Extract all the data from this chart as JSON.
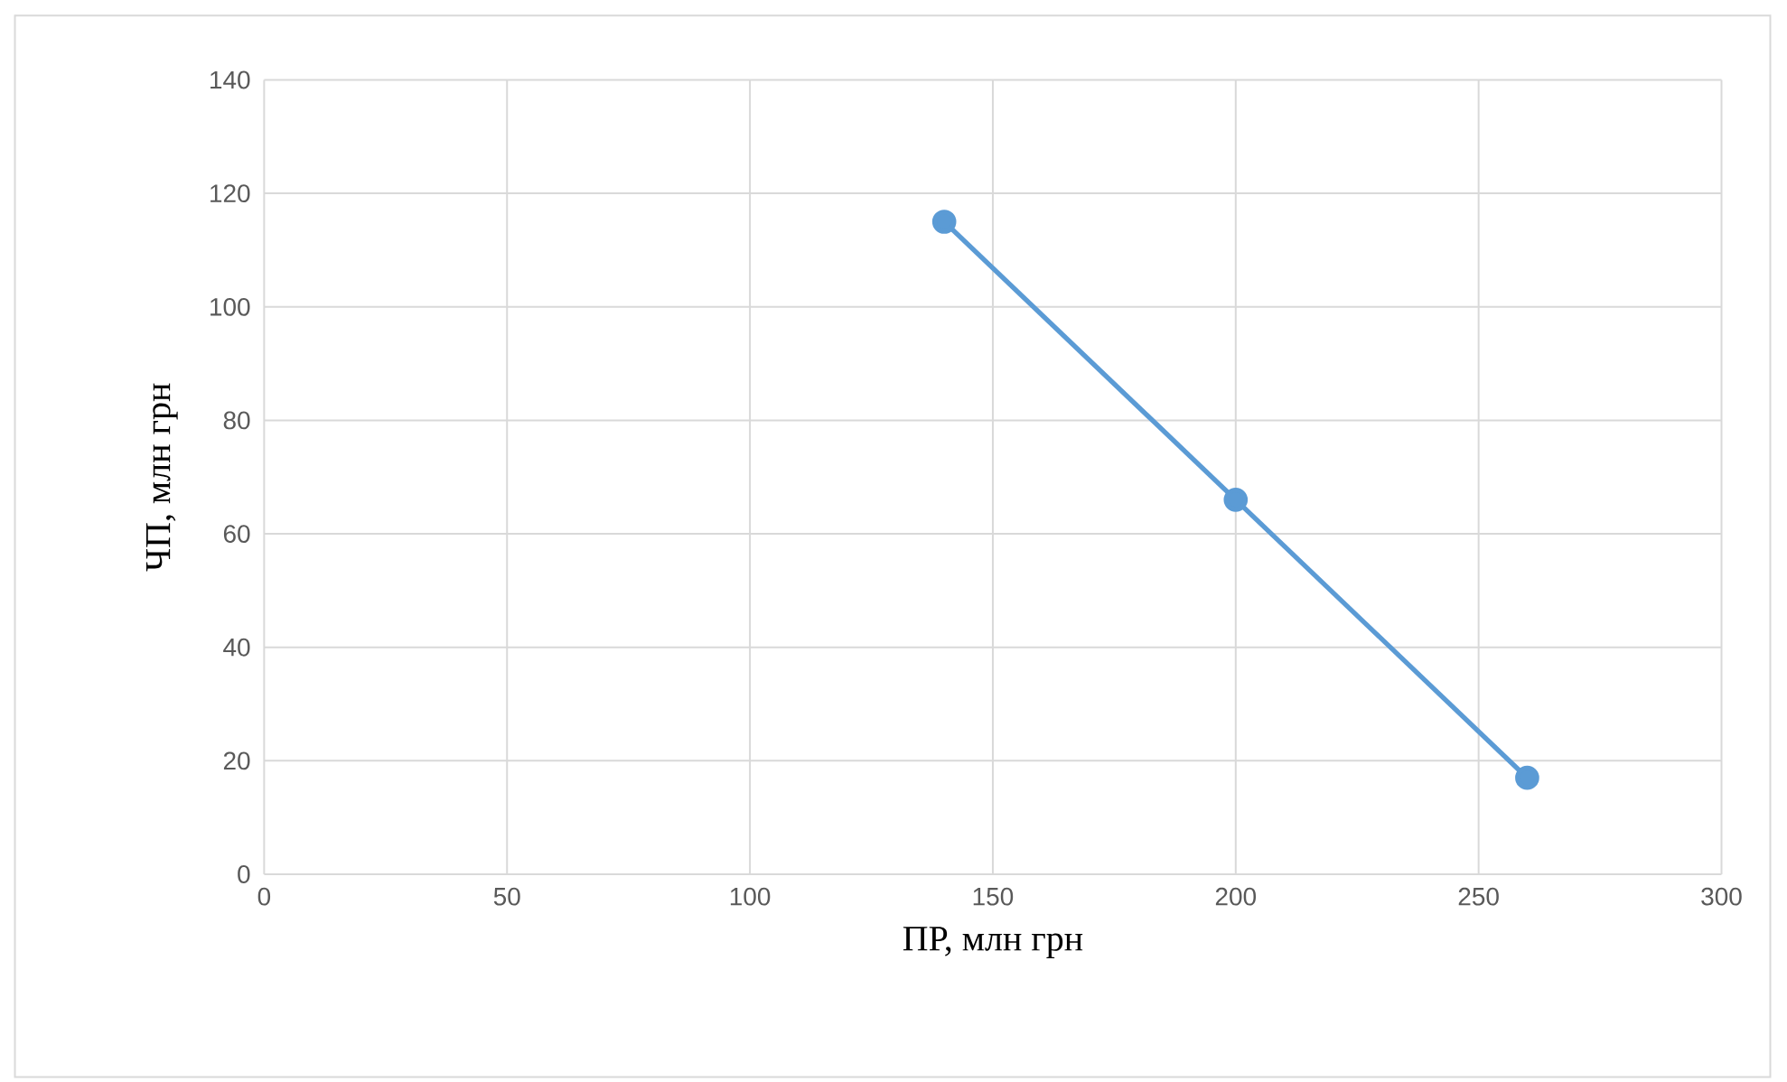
{
  "chart_data": {
    "type": "line",
    "x": [
      140,
      200,
      260
    ],
    "values": [
      115,
      66,
      17
    ],
    "color": "#5b9bd5",
    "marker": "circle",
    "xlabel": "ПР, млн грн",
    "ylabel": "ЧП, млн грн",
    "xlim": [
      0,
      300
    ],
    "ylim": [
      0,
      140
    ],
    "xticks": [
      0,
      50,
      100,
      150,
      200,
      250,
      300
    ],
    "yticks": [
      0,
      20,
      40,
      60,
      80,
      100,
      120,
      140
    ],
    "grid": true
  }
}
